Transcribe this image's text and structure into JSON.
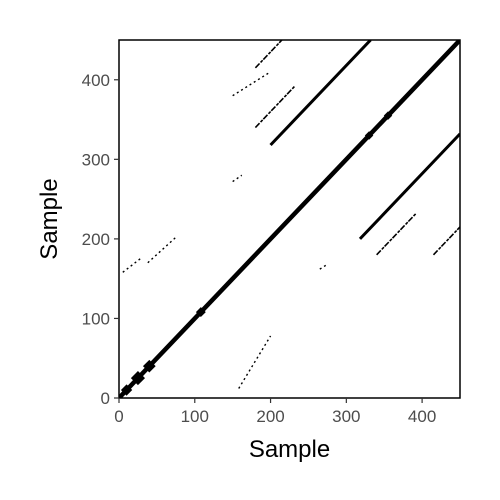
{
  "chart_data": {
    "type": "recurrence-plot",
    "xlabel": "Sample",
    "ylabel": "Sample",
    "xlim": [
      0,
      450
    ],
    "ylim": [
      0,
      450
    ],
    "x_ticks": [
      0,
      100,
      200,
      300,
      400
    ],
    "y_ticks": [
      0,
      100,
      200,
      300,
      400
    ],
    "grid": false,
    "legend": "none",
    "colors": {
      "mark": "#000000",
      "background": "#ffffff",
      "tick_text": "#4d4d4d"
    },
    "diagonals": [
      {
        "lag": 0,
        "x_start": 0,
        "x_end": 450,
        "thickness": 4.5
      },
      {
        "lag": 118,
        "x_start": 200,
        "x_end": 332,
        "thickness": 3
      },
      {
        "lag": -118,
        "x_start": 318,
        "x_end": 450,
        "thickness": 3
      },
      {
        "lag": 235,
        "x_start": 180,
        "x_end": 215,
        "thickness": 1.6
      },
      {
        "lag": -235,
        "x_start": 415,
        "x_end": 450,
        "thickness": 1.6
      },
      {
        "lag": 160,
        "x_start": 180,
        "x_end": 232,
        "thickness": 1.6
      },
      {
        "lag": -160,
        "x_start": 340,
        "x_end": 392,
        "thickness": 1.6
      }
    ],
    "fragments": [
      {
        "x": [
          150,
          200
        ],
        "y": [
          380,
          410
        ]
      },
      {
        "x": [
          150,
          162
        ],
        "y": [
          272,
          280
        ]
      },
      {
        "x": [
          158,
          200
        ],
        "y": [
          12,
          78
        ]
      },
      {
        "x": [
          5,
          28
        ],
        "y": [
          158,
          175
        ]
      },
      {
        "x": [
          38,
          75
        ],
        "y": [
          170,
          202
        ]
      },
      {
        "x": [
          265,
          275
        ],
        "y": [
          162,
          168
        ]
      }
    ],
    "blobs": [
      {
        "x": 10,
        "y": 10,
        "size": 8
      },
      {
        "x": 25,
        "y": 25,
        "size": 10
      },
      {
        "x": 40,
        "y": 40,
        "size": 9
      },
      {
        "x": 108,
        "y": 108,
        "size": 7
      },
      {
        "x": 330,
        "y": 330,
        "size": 6
      },
      {
        "x": 355,
        "y": 355,
        "size": 6
      }
    ]
  }
}
